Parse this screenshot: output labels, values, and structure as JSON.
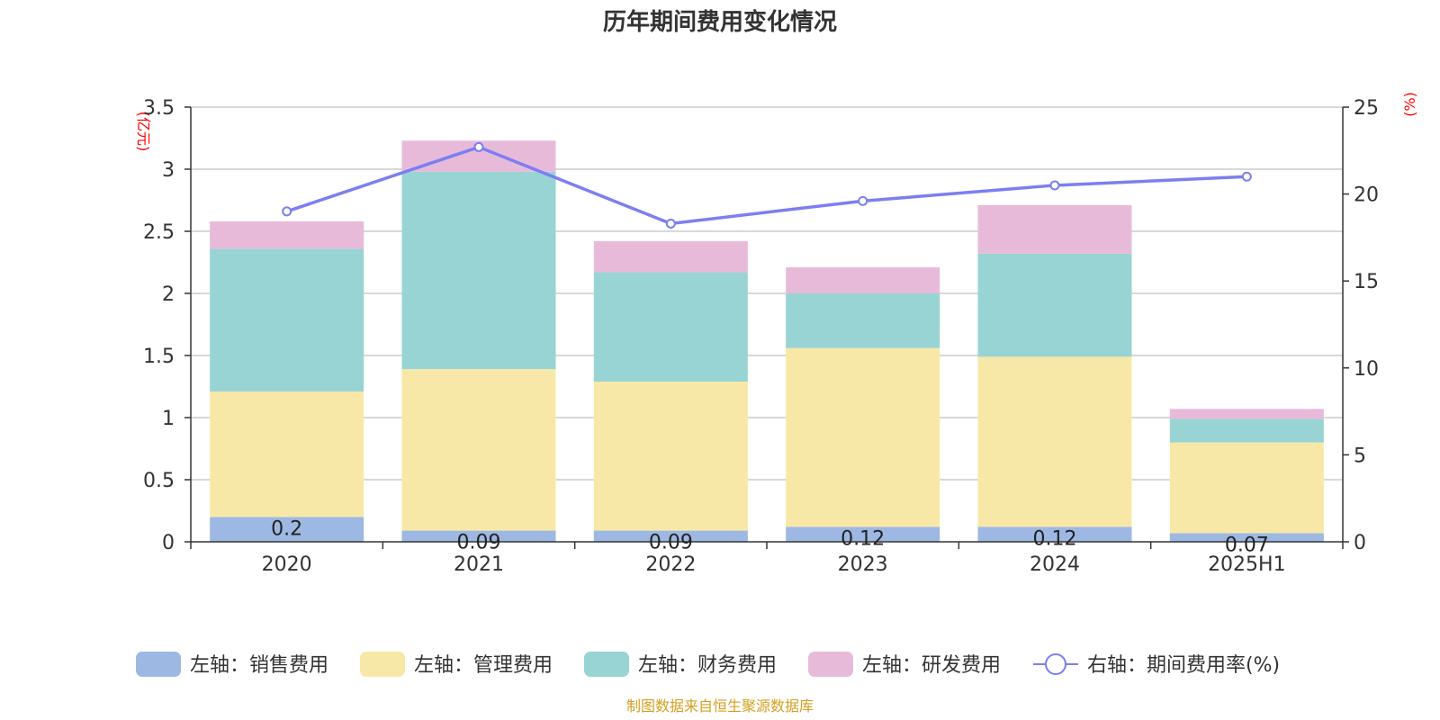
{
  "chart_data": {
    "type": "bar",
    "title": "历年期间费用变化情况",
    "categories": [
      "2020",
      "2021",
      "2022",
      "2023",
      "2024",
      "2025H1"
    ],
    "left_axis": {
      "unit_label": "(亿元)",
      "ylim": [
        0,
        3.5
      ],
      "ticks": [
        "0",
        "0.5",
        "1",
        "1.5",
        "2",
        "2.5",
        "3",
        "3.5"
      ]
    },
    "right_axis": {
      "unit_label": "(%)",
      "ylim": [
        0,
        25
      ],
      "ticks": [
        "0",
        "5",
        "10",
        "15",
        "20",
        "25"
      ]
    },
    "stacked": true,
    "series": [
      {
        "name": "左轴：销售费用",
        "color": "#9db8e2",
        "values": [
          0.2,
          0.09,
          0.09,
          0.12,
          0.12,
          0.07
        ],
        "labels": [
          "0.2",
          "0.09",
          "0.09",
          "0.12",
          "0.12",
          "0.07"
        ]
      },
      {
        "name": "左轴：管理费用",
        "color": "#f8e8a8",
        "values": [
          1.01,
          1.3,
          1.2,
          1.44,
          1.37,
          0.73
        ]
      },
      {
        "name": "左轴：财务费用",
        "color": "#98d4d4",
        "values": [
          1.15,
          1.59,
          0.88,
          0.44,
          0.83,
          0.19
        ]
      },
      {
        "name": "左轴：研发费用",
        "color": "#e8bada",
        "values": [
          0.22,
          0.25,
          0.25,
          0.21,
          0.39,
          0.08
        ]
      }
    ],
    "line": {
      "name": "右轴：期间费用率(%)",
      "color": "#7b7ff0",
      "values": [
        19.0,
        22.7,
        18.3,
        19.6,
        20.5,
        21.0
      ]
    },
    "grid": true,
    "legend_position": "bottom",
    "source": "制图数据来自恒生聚源数据库",
    "source_color": "#d4a020"
  }
}
